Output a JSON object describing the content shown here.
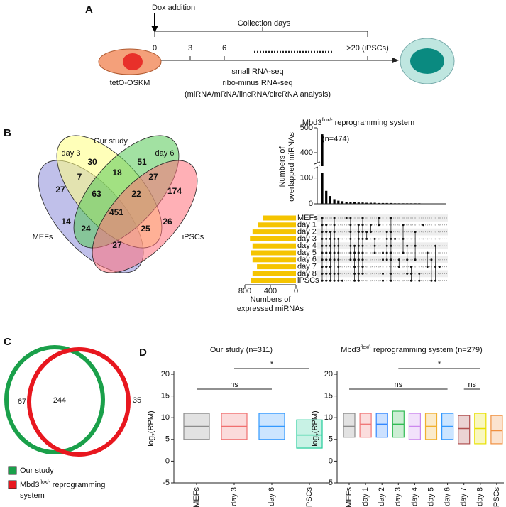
{
  "panels": [
    "A",
    "B",
    "C",
    "D"
  ],
  "timeline": {
    "dox_label": "Dox addition",
    "collection_label": "Collection days",
    "days": [
      0,
      3,
      6,
      ">20 (iPSCs)"
    ],
    "cell_label": "tetO-OSKM",
    "methods": [
      "small RNA-seq",
      "ribo-minus RNA-seq",
      "(miRNA/mRNA/lincRNA/circRNA analysis)"
    ]
  },
  "venn4": {
    "title": "Our study",
    "sets": [
      "day 3",
      "day 6",
      "MEFs",
      "iPSCs"
    ],
    "regions": [
      27,
      30,
      51,
      174,
      7,
      18,
      27,
      63,
      22,
      14,
      451,
      26,
      24,
      25,
      27
    ]
  },
  "upset": {
    "title": {
      "main": "Mbd3",
      "sup": "flox/-",
      "rest": " reprogramming system"
    },
    "y_label": [
      "Numbers of",
      "overlapped miRNAs"
    ],
    "annotation": "(n=474)",
    "ylim_lower": [
      0,
      140
    ],
    "ylim_upper": [
      360,
      500
    ],
    "yticks": [
      0,
      100,
      400,
      500
    ],
    "bar_color": "#000000",
    "sets": [
      "MEFs",
      "day 1",
      "day 2",
      "day 3",
      "day 4",
      "day 5",
      "day 6",
      "day 7",
      "day 8",
      "iPSCs"
    ],
    "set_sizes": [
      520,
      600,
      680,
      720,
      680,
      700,
      680,
      610,
      680,
      700
    ],
    "set_color": "#f5c400",
    "xlim": [
      800,
      0
    ],
    "xticks": [
      800,
      400,
      0
    ],
    "x_label": [
      "Numbers of",
      "expressed miRNAs"
    ],
    "intersections": [
      {
        "size": 474,
        "sets": [
          0,
          1,
          2,
          3,
          4,
          5,
          6,
          7,
          8,
          9
        ]
      },
      {
        "size": 50,
        "sets": [
          1,
          2,
          3,
          4,
          5,
          6,
          7,
          8,
          9
        ]
      },
      {
        "size": 30,
        "sets": [
          2,
          3,
          4,
          5,
          6,
          7,
          8,
          9
        ]
      },
      {
        "size": 18,
        "sets": [
          0,
          1,
          2,
          3,
          4,
          5,
          6,
          8,
          9
        ]
      },
      {
        "size": 12,
        "sets": [
          3,
          4,
          5,
          6,
          7,
          8,
          9
        ]
      },
      {
        "size": 10,
        "sets": [
          9
        ]
      },
      {
        "size": 8,
        "sets": [
          0
        ]
      },
      {
        "size": 7,
        "sets": [
          0,
          1,
          2,
          3,
          4,
          5,
          6
        ]
      },
      {
        "size": 6,
        "sets": [
          4,
          5,
          6,
          7,
          8,
          9
        ]
      },
      {
        "size": 5,
        "sets": [
          1,
          2,
          3,
          4,
          5,
          6,
          8,
          9
        ]
      },
      {
        "size": 5,
        "sets": [
          0,
          1,
          2,
          3,
          4,
          5,
          6,
          7,
          8
        ]
      },
      {
        "size": 4,
        "sets": [
          2,
          3
        ]
      },
      {
        "size": 4,
        "sets": [
          1,
          2
        ]
      },
      {
        "size": 4,
        "sets": [
          3,
          4,
          5
        ]
      },
      {
        "size": 3,
        "sets": [
          0,
          1
        ]
      },
      {
        "size": 3,
        "sets": [
          5,
          6,
          8,
          9
        ]
      },
      {
        "size": 3,
        "sets": [
          2,
          3,
          4,
          5,
          6
        ]
      },
      {
        "size": 3,
        "sets": [
          0,
          2,
          3,
          4,
          5,
          6,
          8,
          9
        ]
      },
      {
        "size": 2,
        "sets": [
          3
        ]
      },
      {
        "size": 2,
        "sets": [
          6,
          7
        ]
      },
      {
        "size": 2,
        "sets": [
          1,
          3,
          5
        ]
      },
      {
        "size": 2,
        "sets": [
          4,
          6,
          8
        ]
      },
      {
        "size": 2,
        "sets": [
          7,
          8,
          9
        ]
      },
      {
        "size": 2,
        "sets": [
          2,
          4,
          6
        ]
      },
      {
        "size": 2,
        "sets": [
          8,
          9
        ]
      },
      {
        "size": 1,
        "sets": [
          1
        ]
      },
      {
        "size": 1,
        "sets": [
          5,
          7
        ]
      },
      {
        "size": 1,
        "sets": [
          6,
          9
        ]
      },
      {
        "size": 1,
        "sets": [
          4,
          7,
          9
        ]
      },
      {
        "size": 1,
        "sets": [
          7
        ]
      }
    ]
  },
  "venn2": {
    "values": [
      67,
      244,
      35
    ],
    "legend": [
      {
        "label": "Our study",
        "color": "#1aa04a"
      },
      {
        "main": "Mbd3",
        "sup": "flox/-",
        "rest": " reprogramming",
        "line2": "system",
        "color": "#e8171f"
      }
    ]
  },
  "boxplots": [
    {
      "title": {
        "main": "Our study (n=311)"
      },
      "y_label": {
        "main": "log",
        "sub": "2",
        "rest": "(RPM)"
      },
      "ylim": [
        -5,
        20
      ],
      "yticks": [
        -5,
        0,
        5,
        10,
        15,
        20
      ],
      "categories": [
        "MEFs",
        "day 3",
        "day 6",
        "iPSCs"
      ],
      "colors": [
        "#8c8c8c",
        "#f07070",
        "#3399ff",
        "#22cc99"
      ],
      "boxes": [
        {
          "q1": 5,
          "median": 8,
          "q3": 11
        },
        {
          "q1": 5,
          "median": 8,
          "q3": 11
        },
        {
          "q1": 5,
          "median": 8,
          "q3": 11
        },
        {
          "q1": 3,
          "median": 6,
          "q3": 9.5
        }
      ],
      "comparisons": [
        "ns",
        "*"
      ]
    },
    {
      "title": {
        "main": "Mbd3",
        "sup": "flox/-",
        "rest": " reprogramming system (n=279)"
      },
      "y_label": {
        "main": "log",
        "sub": "2",
        "rest": "(RPM)"
      },
      "ylim": [
        -5,
        20
      ],
      "yticks": [
        -5,
        0,
        5,
        10,
        15,
        20
      ],
      "categories": [
        "MEFs",
        "day 1",
        "day 2",
        "day 3",
        "day 4",
        "day 5",
        "day 6",
        "day 7",
        "day 8",
        "iPSCs"
      ],
      "colors": [
        "#8c8c8c",
        "#f07878",
        "#3388ff",
        "#33bb55",
        "#cc88ee",
        "#f0b030",
        "#3399ff",
        "#b05050",
        "#e8e000",
        "#f09040"
      ],
      "boxes": [
        {
          "q1": 5.5,
          "median": 8,
          "q3": 11
        },
        {
          "q1": 5.5,
          "median": 8.5,
          "q3": 11
        },
        {
          "q1": 5.5,
          "median": 8.5,
          "q3": 11
        },
        {
          "q1": 5.5,
          "median": 8.5,
          "q3": 11.5
        },
        {
          "q1": 5,
          "median": 8,
          "q3": 11
        },
        {
          "q1": 5,
          "median": 8,
          "q3": 11
        },
        {
          "q1": 5,
          "median": 8,
          "q3": 11
        },
        {
          "q1": 4,
          "median": 7.5,
          "q3": 10.5
        },
        {
          "q1": 4,
          "median": 7.5,
          "q3": 11
        },
        {
          "q1": 4,
          "median": 7,
          "q3": 10.5
        }
      ],
      "comparisons": [
        "ns",
        "*",
        "ns"
      ]
    }
  ]
}
